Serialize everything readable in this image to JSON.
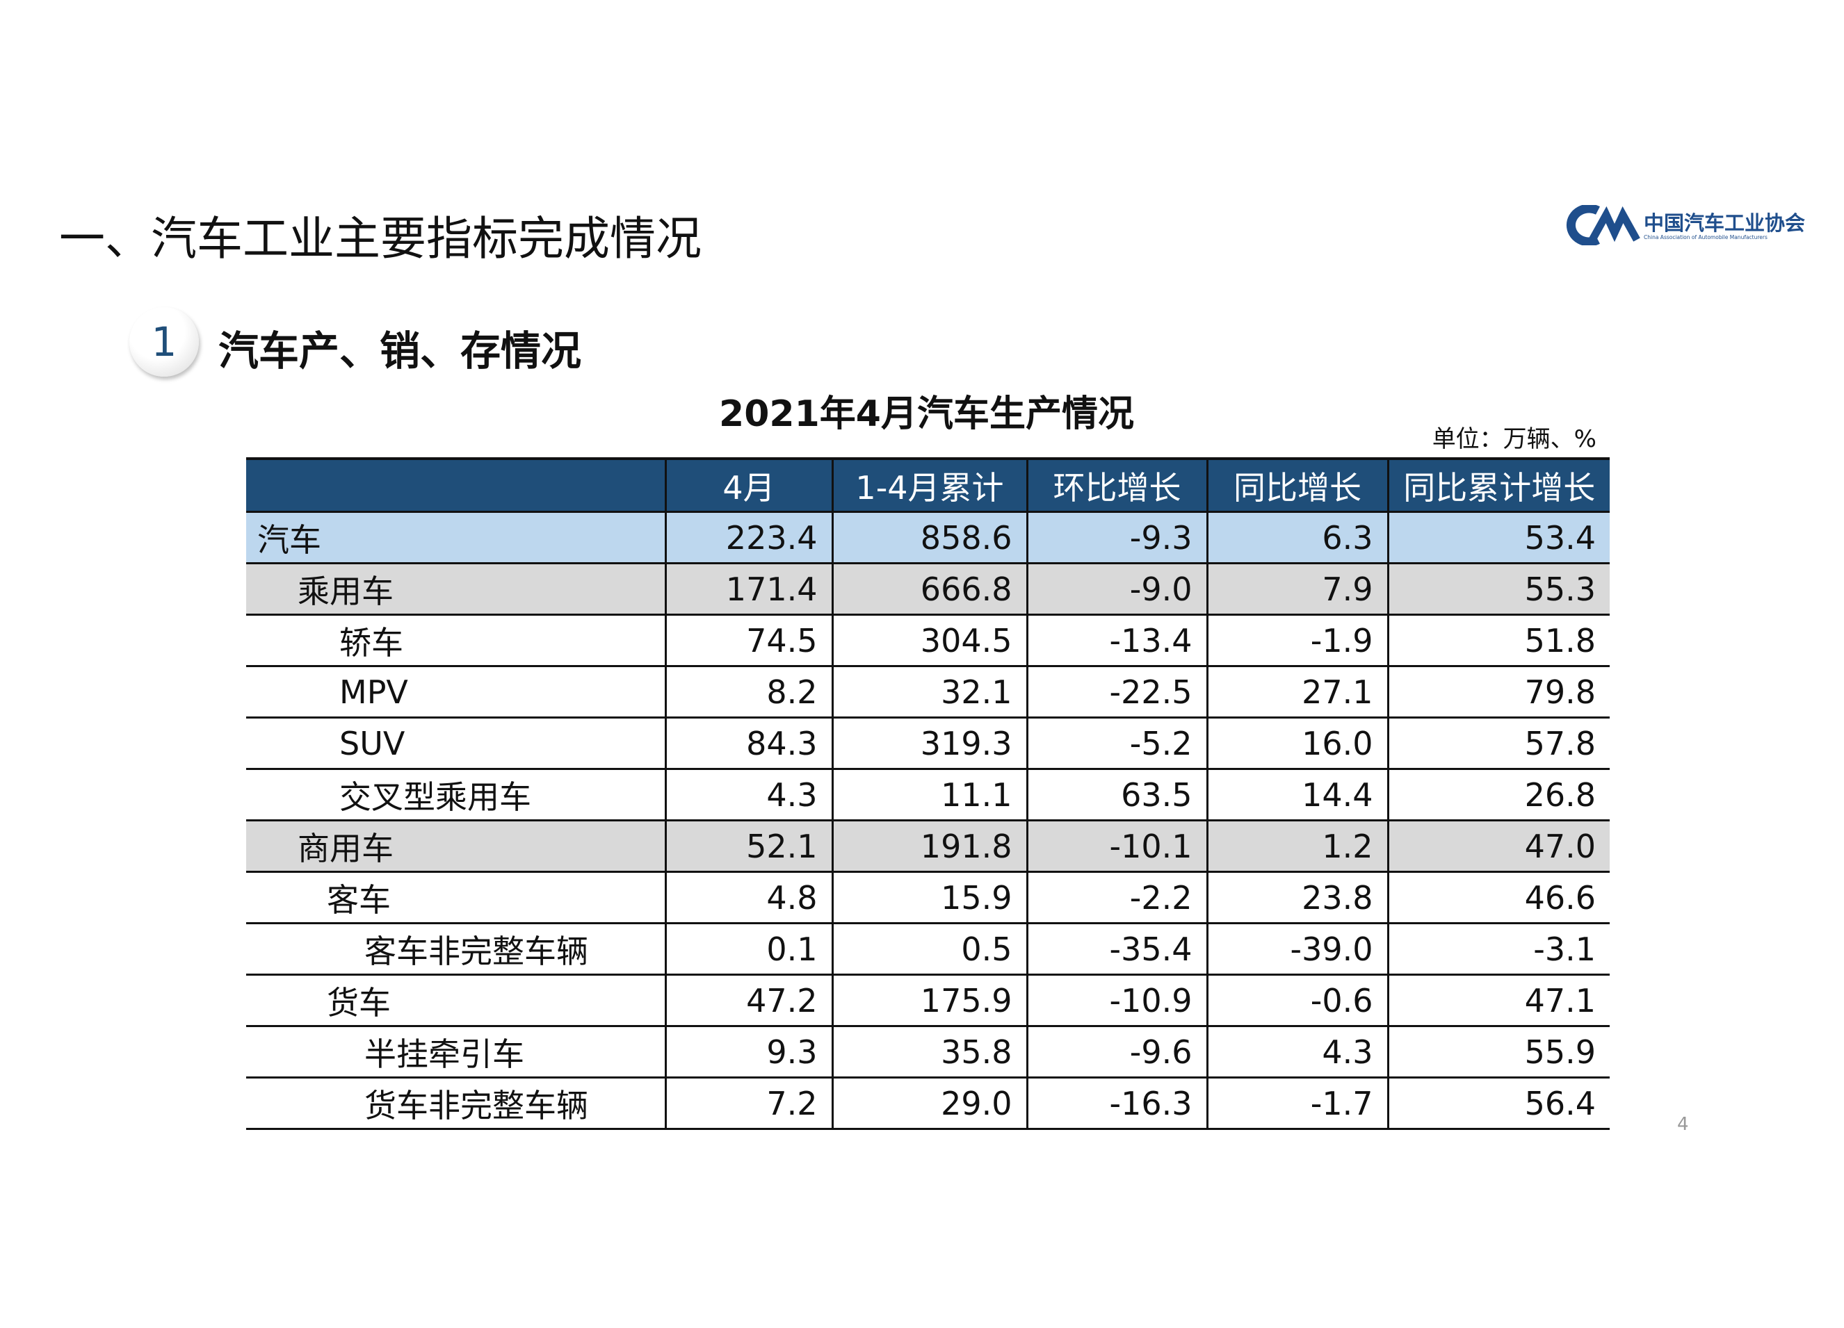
{
  "header": {
    "title": "一、汽车工业主要指标完成情况",
    "logo_name": "中国汽车工业协会",
    "logo_sub": "China Association of Automobile Manufacturers"
  },
  "section": {
    "number": "1",
    "title": "汽车产、销、存情况"
  },
  "table": {
    "title": "2021年4月汽车生产情况",
    "unit": "单位：万辆、%",
    "columns": [
      "4月",
      "1-4月累计",
      "环比增长",
      "同比增长",
      "同比累计增长"
    ],
    "rows": [
      [
        "汽车",
        "223.4",
        "858.6",
        "-9.3",
        "6.3",
        "53.4"
      ],
      [
        "乘用车",
        "171.4",
        "666.8",
        "-9.0",
        "7.9",
        "55.3"
      ],
      [
        "轿车",
        "74.5",
        "304.5",
        "-13.4",
        "-1.9",
        "51.8"
      ],
      [
        "MPV",
        "8.2",
        "32.1",
        "-22.5",
        "27.1",
        "79.8"
      ],
      [
        "SUV",
        "84.3",
        "319.3",
        "-5.2",
        "16.0",
        "57.8"
      ],
      [
        "交叉型乘用车",
        "4.3",
        "11.1",
        "63.5",
        "14.4",
        "26.8"
      ],
      [
        "商用车",
        "52.1",
        "191.8",
        "-10.1",
        "1.2",
        "47.0"
      ],
      [
        "客车",
        "4.8",
        "15.9",
        "-2.2",
        "23.8",
        "46.6"
      ],
      [
        "客车非完整车辆",
        "0.1",
        "0.5",
        "-35.4",
        "-39.0",
        "-3.1"
      ],
      [
        "货车",
        "47.2",
        "175.9",
        "-10.9",
        "-0.6",
        "47.1"
      ],
      [
        "半挂牵引车",
        "9.3",
        "35.8",
        "-9.6",
        "4.3",
        "55.9"
      ],
      [
        "货车非完整车辆",
        "7.2",
        "29.0",
        "-16.3",
        "-1.7",
        "56.4"
      ]
    ]
  },
  "page_number": "4"
}
